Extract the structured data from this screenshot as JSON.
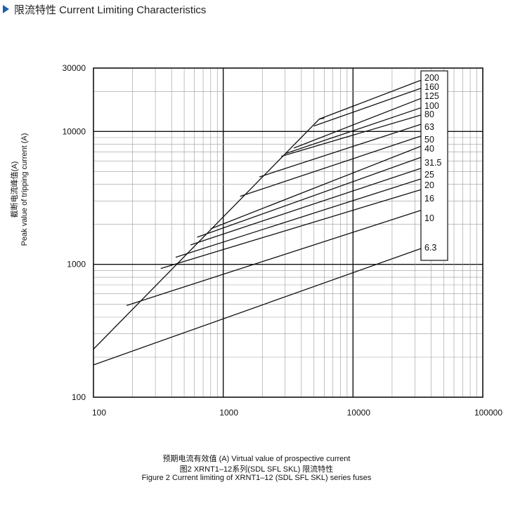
{
  "header": {
    "title": "限流特性  Current Limiting Characteristics",
    "accent_color": "#1f5fa8"
  },
  "chart_data": {
    "type": "line",
    "title": "",
    "xlabel": "预期电流有效值  (A) Virtual value of prospective current",
    "ylabel_line1": "截断电流峰值(A)",
    "ylabel_line2": "Peak value of tripping current (A)",
    "xscale": "log",
    "yscale": "log",
    "xlim": [
      100,
      100000
    ],
    "ylim": [
      100,
      30000
    ],
    "x_tick_labels": [
      "100",
      "1000",
      "10000",
      "100000"
    ],
    "y_tick_labels": [
      "100",
      "1000",
      "10000",
      "30000"
    ],
    "grid": true,
    "legend_position": "right",
    "envelope": {
      "name": "",
      "points": [
        [
          100,
          230
        ],
        [
          5500,
          12400
        ],
        [
          6000,
          12600
        ]
      ]
    },
    "series": [
      {
        "name": "200",
        "points": [
          [
            5500,
            12400
          ],
          [
            40000,
            26000
          ]
        ]
      },
      {
        "name": "160",
        "points": [
          [
            5000,
            11000
          ],
          [
            40000,
            22500
          ]
        ]
      },
      {
        "name": "125",
        "points": [
          [
            3500,
            7500
          ],
          [
            40000,
            19000
          ]
        ]
      },
      {
        "name": "100",
        "points": [
          [
            3000,
            6800
          ],
          [
            40000,
            16000
          ]
        ]
      },
      {
        "name": "80",
        "points": [
          [
            2800,
            6500
          ],
          [
            40000,
            14000
          ]
        ]
      },
      {
        "name": "63",
        "points": [
          [
            1900,
            4550
          ],
          [
            40000,
            12000
          ]
        ]
      },
      {
        "name": "50",
        "points": [
          [
            1350,
            3250
          ],
          [
            40000,
            9800
          ]
        ]
      },
      {
        "name": "40",
        "points": [
          [
            800,
            1850
          ],
          [
            40000,
            8300
          ]
        ]
      },
      {
        "name": "31.5",
        "points": [
          [
            630,
            1600
          ],
          [
            40000,
            6800
          ]
        ]
      },
      {
        "name": "25",
        "points": [
          [
            560,
            1400
          ],
          [
            40000,
            5600
          ]
        ]
      },
      {
        "name": "20",
        "points": [
          [
            430,
            1130
          ],
          [
            40000,
            4650
          ]
        ]
      },
      {
        "name": "16",
        "points": [
          [
            330,
            930
          ],
          [
            40000,
            3850
          ]
        ]
      },
      {
        "name": "10",
        "points": [
          [
            180,
            490
          ],
          [
            40000,
            2700
          ]
        ]
      },
      {
        "name": "6.3",
        "points": [
          [
            100,
            175
          ],
          [
            40000,
            1400
          ]
        ]
      }
    ],
    "legend_box_labels": [
      "200",
      "160",
      "125",
      "100",
      "80",
      "63",
      "50",
      "40",
      "31.5",
      "25",
      "20",
      "16",
      "10",
      "6.3"
    ]
  },
  "captions": {
    "line1": "预期电流有效值  (A) Virtual value of prospective current",
    "line2": "图2  XRNT1–12系列(SDL SFL SKL) 限流特性",
    "line3": "Figure 2   Current limiting of XRNT1–12 (SDL SFL SKL) series fuses"
  }
}
